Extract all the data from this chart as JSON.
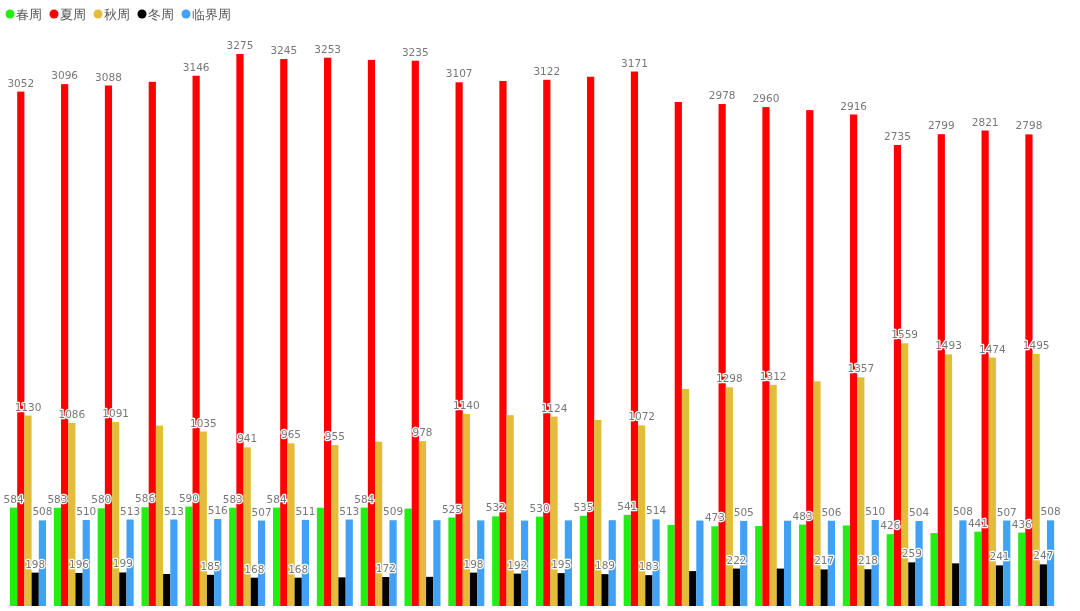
{
  "chart_data": {
    "type": "bar",
    "legend": "top left",
    "categories": [
      null,
      null,
      null,
      null,
      null,
      null,
      null,
      null,
      null,
      null,
      null,
      null,
      null,
      null,
      null,
      null,
      null,
      null,
      null,
      null,
      null,
      null,
      null,
      null
    ],
    "series": [
      {
        "name": "春周",
        "color": "#22ee11",
        "values": [
          584,
          583,
          580,
          586,
          590,
          583,
          584,
          583,
          584,
          578,
          525,
          532,
          530,
          535,
          541,
          481,
          473,
          475,
          483,
          478,
          426,
          433,
          441,
          436
        ],
        "value_labels": [
          "584",
          "583",
          "580",
          "586",
          "590",
          "583",
          "584",
          null,
          "584",
          null,
          "525",
          "532",
          "530",
          "535",
          "541",
          null,
          "473",
          null,
          "483",
          null,
          "426",
          null,
          "441",
          "436"
        ]
      },
      {
        "name": "夏周",
        "color": "#ff0000",
        "values": [
          3052,
          3096,
          3088,
          3110,
          3146,
          3275,
          3245,
          3253,
          3240,
          3235,
          3107,
          3115,
          3122,
          3140,
          3171,
          2990,
          2978,
          2960,
          2942,
          2916,
          2735,
          2799,
          2821,
          2798
        ],
        "value_labels": [
          "3052",
          "3096",
          "3088",
          null,
          "3146",
          "3275",
          "3245",
          "3253",
          null,
          "3235",
          "3107",
          null,
          "3122",
          null,
          "3171",
          null,
          "2978",
          "2960",
          null,
          "2916",
          "2735",
          "2799",
          "2821",
          "2798"
        ]
      },
      {
        "name": "秋周",
        "color": "#e3bc3a",
        "values": [
          1130,
          1086,
          1091,
          1070,
          1035,
          941,
          965,
          955,
          975,
          978,
          1140,
          1132,
          1124,
          1104,
          1072,
          1288,
          1298,
          1312,
          1333,
          1357,
          1559,
          1493,
          1474,
          1495
        ],
        "value_labels": [
          "1130",
          "1086",
          "1091",
          null,
          "1035",
          "941",
          "965",
          "955",
          null,
          "978",
          "1140",
          null,
          "1124",
          null,
          "1072",
          null,
          "1298",
          "1312",
          null,
          "1357",
          "1559",
          "1493",
          "1474",
          "1495"
        ]
      },
      {
        "name": "冬周",
        "color": "#000000",
        "values": [
          198,
          196,
          199,
          190,
          185,
          168,
          168,
          170,
          172,
          173,
          198,
          192,
          195,
          189,
          183,
          207,
          222,
          222,
          217,
          218,
          259,
          253,
          241,
          247
        ],
        "value_labels": [
          "198",
          "196",
          "199",
          null,
          "185",
          "168",
          "168",
          null,
          "172",
          null,
          "198",
          "192",
          "195",
          "189",
          "183",
          null,
          "222",
          null,
          "217",
          "218",
          "259",
          null,
          "241",
          "247"
        ]
      },
      {
        "name": "临界周",
        "color": "#42a0f5",
        "values": [
          508,
          510,
          513,
          513,
          516,
          507,
          511,
          513,
          509,
          509,
          508,
          507,
          508,
          509,
          514,
          507,
          505,
          506,
          506,
          510,
          504,
          508,
          507,
          508
        ],
        "value_labels": [
          "508",
          "510",
          "513",
          "513",
          "516",
          "507",
          "511",
          "513",
          "509",
          null,
          null,
          null,
          null,
          null,
          "514",
          null,
          "505",
          null,
          "506",
          "510",
          "504",
          "508",
          "507",
          "508"
        ]
      }
    ]
  }
}
